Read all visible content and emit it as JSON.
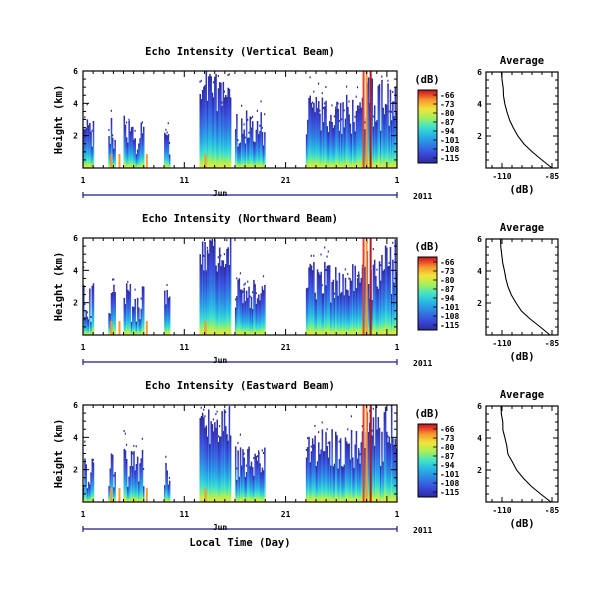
{
  "chart_data": {
    "type": "heatmap",
    "panels": [
      {
        "title": "Echo Intensity (Vertical Beam)",
        "ylabel": "Height (km)",
        "yticks": [
          "6",
          "4",
          "2"
        ],
        "xticks": [
          "1",
          "11",
          "21",
          "1"
        ],
        "month_label": "Jun",
        "year_label": "2011",
        "colorbar_unit": "(dB)",
        "colorbar_ticks": [
          "-66",
          "-73",
          "-80",
          "-87",
          "-94",
          "-101",
          "-108",
          "-115"
        ],
        "profile": {
          "title": "Average",
          "xlabel": "(dB)",
          "xticks": [
            "-110",
            "-85"
          ],
          "yticks": [
            "6",
            "4",
            "2"
          ],
          "height_km": [
            0.0,
            0.5,
            1.0,
            1.5,
            2.0,
            2.5,
            3.0,
            3.5,
            4.0,
            4.5,
            5.0,
            5.5,
            6.0
          ],
          "echo_db": [
            -85.0,
            -90.0,
            -95.0,
            -99.0,
            -102.0,
            -104.5,
            -106.5,
            -107.5,
            -108.5,
            -109.2,
            -109.6,
            -110.0,
            -110.3
          ]
        }
      },
      {
        "title": "Echo Intensity (Northward Beam)",
        "ylabel": "Height (km)",
        "yticks": [
          "6",
          "4",
          "2"
        ],
        "xticks": [
          "1",
          "11",
          "21",
          "1"
        ],
        "month_label": "Jun",
        "year_label": "2011",
        "colorbar_unit": "(dB)",
        "colorbar_ticks": [
          "-66",
          "-73",
          "-80",
          "-87",
          "-94",
          "-101",
          "-108",
          "-115"
        ],
        "profile": {
          "title": "Average",
          "xlabel": "(dB)",
          "xticks": [
            "-110",
            "-85"
          ],
          "yticks": [
            "6",
            "4",
            "2"
          ],
          "height_km": [
            0.0,
            0.5,
            1.0,
            1.5,
            2.0,
            2.5,
            3.0,
            3.5,
            4.0,
            4.5,
            5.0,
            5.5,
            6.0
          ],
          "echo_db": [
            -86.0,
            -91.0,
            -96.0,
            -100.0,
            -103.0,
            -105.5,
            -107.0,
            -108.0,
            -109.0,
            -109.5,
            -110.0,
            -110.4,
            -110.7
          ]
        }
      },
      {
        "title": "Echo Intensity (Eastward Beam)",
        "ylabel": "Height (km)",
        "yticks": [
          "6",
          "4",
          "2"
        ],
        "xticks": [
          "1",
          "11",
          "21",
          "1"
        ],
        "month_label": "Jun",
        "year_label": "2011",
        "xlabel": "Local Time (Day)",
        "colorbar_unit": "(dB)",
        "colorbar_ticks": [
          "-66",
          "-73",
          "-80",
          "-87",
          "-94",
          "-101",
          "-108",
          "-115"
        ],
        "profile": {
          "title": "Average",
          "xlabel": "(dB)",
          "xticks": [
            "-110",
            "-85"
          ],
          "yticks": [
            "6",
            "4",
            "2"
          ],
          "height_km": [
            0.0,
            0.5,
            1.0,
            1.5,
            2.0,
            2.5,
            3.0,
            3.5,
            4.0,
            4.5,
            5.0,
            5.5,
            6.0
          ],
          "echo_db": [
            -85.5,
            -90.5,
            -95.5,
            -99.5,
            -102.5,
            -105.0,
            -106.8,
            -107.8,
            -108.8,
            -109.4,
            -109.8,
            -110.2,
            -110.5
          ]
        }
      }
    ],
    "data_segments_days": [
      [
        1,
        2
      ],
      [
        3.5,
        4.2
      ],
      [
        5,
        7
      ],
      [
        9,
        9.5
      ],
      [
        12.5,
        15.5
      ],
      [
        16,
        19
      ],
      [
        23,
        32
      ]
    ],
    "ylim": [
      0,
      6
    ],
    "profile_xlim": [
      -118,
      -82
    ],
    "colormap": [
      "#2b2b9b",
      "#3a47d9",
      "#2f7fe3",
      "#27b6e6",
      "#42e3c8",
      "#a4f05a",
      "#f2e43c",
      "#f59a2d",
      "#e9402a",
      "#b51b1b"
    ]
  }
}
